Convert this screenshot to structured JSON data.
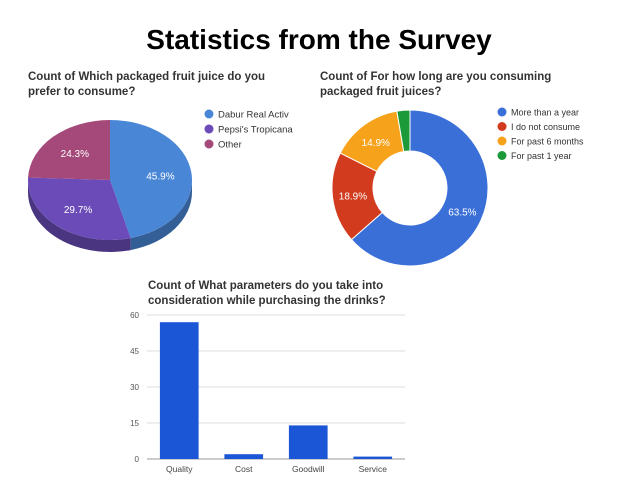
{
  "slide": {
    "title": "Statistics from the Survey"
  },
  "chart_data": [
    {
      "type": "pie",
      "title": "Count of Which packaged fruit juice do you prefer to consume?",
      "labels": [
        "Dabur Real Activ",
        "Pepsi's Tropicana",
        "Other"
      ],
      "values": [
        45.9,
        29.7,
        24.3
      ],
      "value_labels": [
        "45.9%",
        "29.7%",
        "24.3%"
      ],
      "colors": [
        "#4a86d6",
        "#6a4bb8",
        "#a5487a"
      ],
      "legend_position": "right"
    },
    {
      "type": "pie",
      "variant": "donut",
      "title": "Count of For how long are you consuming packaged fruit juices?",
      "labels": [
        "More than a year",
        "I do not consume",
        "For past 6 months",
        "For past 1 year"
      ],
      "values": [
        63.5,
        18.9,
        14.9,
        2.7
      ],
      "value_labels": [
        "63.5%",
        "18.9%",
        "14.9%",
        ""
      ],
      "colors": [
        "#3a6fd8",
        "#d23b1e",
        "#f7a21b",
        "#1c9a3a"
      ],
      "legend_position": "right"
    },
    {
      "type": "bar",
      "title": "Count of What parameters do you take into consideration while purchasing the drinks?",
      "categories": [
        "Quality",
        "Cost",
        "Goodwill",
        "Service"
      ],
      "values": [
        57,
        2,
        14,
        1
      ],
      "ylim": [
        0,
        60
      ],
      "yticks": [
        0,
        15,
        30,
        45,
        60
      ],
      "grid": true,
      "color": "#1a56d6"
    }
  ]
}
